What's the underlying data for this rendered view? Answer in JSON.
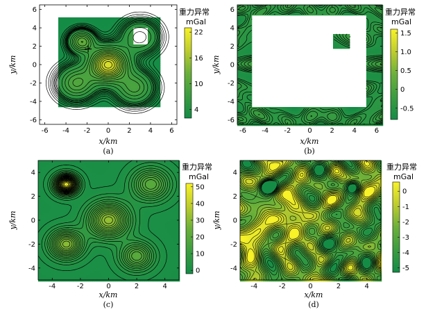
{
  "chart_data": [
    {
      "type": "contour",
      "caption": "(a)",
      "xlabel": "x/km",
      "ylabel": "y/km",
      "xlim": [
        -6.5,
        6.5
      ],
      "ylim": [
        -6.5,
        6.5
      ],
      "xticks": [
        -6,
        -4,
        -2,
        0,
        2,
        4,
        6
      ],
      "yticks": [
        -6,
        -4,
        -2,
        0,
        2,
        4,
        6
      ],
      "colorbar": {
        "title": "重力异常",
        "unit": "mGal",
        "ticks": [
          4,
          10,
          16,
          22
        ],
        "range": [
          2,
          23
        ]
      },
      "data_region": [
        -4.8,
        5,
        -4.7,
        5.1
      ],
      "blank_region": [
        2.3,
        3.7,
        2.2,
        4.1
      ],
      "sources": [
        {
          "x": 0,
          "y": 0,
          "amp": 18,
          "w": 1.2
        },
        {
          "x": -2.5,
          "y": 2.5,
          "amp": 10,
          "w": 0.8
        },
        {
          "x": -3,
          "y": -2,
          "amp": 8,
          "w": 1.2
        },
        {
          "x": 2.5,
          "y": -2.5,
          "amp": 7,
          "w": 1.2
        },
        {
          "x": 3,
          "y": 3,
          "amp": 6,
          "w": 1.2
        }
      ],
      "levels": 16
    },
    {
      "type": "contour",
      "caption": "(b)",
      "xlabel": "x/km",
      "ylabel": "y/km",
      "xlim": [
        -6.5,
        6.5
      ],
      "ylim": [
        -6.5,
        6.5
      ],
      "xticks": [
        -6,
        -4,
        -2,
        0,
        2,
        4,
        6
      ],
      "yticks": [
        -6,
        -4,
        -2,
        0,
        2,
        4,
        6
      ],
      "colorbar": {
        "title": "重力异常",
        "unit": "mGal",
        "ticks": [
          -0.5,
          0,
          0.5,
          1.0,
          1.5
        ],
        "tick_labels": [
          "-0.5",
          "0",
          "0.5",
          "1.0",
          "1.5"
        ],
        "range": [
          -0.8,
          1.6
        ]
      },
      "data_region": [
        -6.5,
        6.5,
        -6.5,
        6.5
      ],
      "blank_region": [
        -5.2,
        5.1,
        -4.7,
        5.4
      ],
      "island_region": [
        2.1,
        3.6,
        1.7,
        3.3
      ],
      "levels": 12
    },
    {
      "type": "contour",
      "caption": "(c)",
      "xlabel": "x/km",
      "ylabel": "y/km",
      "xlim": [
        -5,
        5
      ],
      "ylim": [
        -5,
        5
      ],
      "xticks": [
        -4,
        -2,
        0,
        2,
        4
      ],
      "yticks": [
        -4,
        -2,
        0,
        2,
        4
      ],
      "colorbar": {
        "title": "重力异常",
        "unit": "mGal",
        "ticks": [
          0,
          10,
          20,
          30,
          40,
          50
        ],
        "range": [
          -2,
          52
        ]
      },
      "sources": [
        {
          "x": -3,
          "y": 3,
          "amp": 50,
          "w": 0.55
        },
        {
          "x": -3,
          "y": -2,
          "amp": 30,
          "w": 0.8
        },
        {
          "x": 0,
          "y": 0,
          "amp": 32,
          "w": 1.0
        },
        {
          "x": 2,
          "y": -3,
          "amp": 22,
          "w": 0.8
        },
        {
          "x": 3,
          "y": 3,
          "amp": 22,
          "w": 0.9
        }
      ],
      "levels": 24
    },
    {
      "type": "contour",
      "caption": "(d)",
      "xlabel": "x/km",
      "ylabel": "y/km",
      "xlim": [
        -5,
        5
      ],
      "ylim": [
        -5,
        5
      ],
      "xticks": [
        -4,
        -2,
        0,
        2,
        4
      ],
      "yticks": [
        -4,
        -2,
        0,
        2,
        4
      ],
      "colorbar": {
        "title": "重力异常",
        "unit": "mGal",
        "ticks": [
          0,
          -1,
          -2,
          -3,
          -4,
          -5
        ],
        "range": [
          -5.3,
          0.6
        ]
      },
      "sinks": [
        {
          "x": -3,
          "y": 2.8,
          "amp": 6,
          "w": 0.4
        },
        {
          "x": 3,
          "y": 2.8,
          "amp": 6,
          "w": 0.4
        }
      ],
      "levels": 14
    }
  ]
}
